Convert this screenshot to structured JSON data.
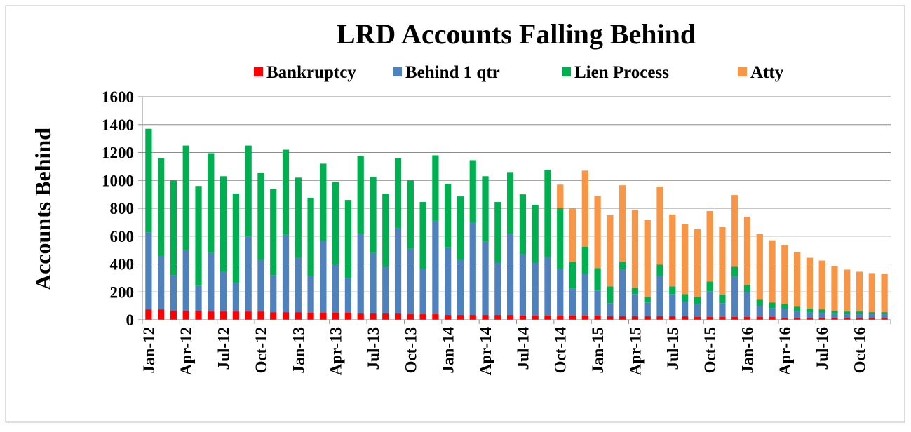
{
  "chart_data": {
    "type": "stacked_bar",
    "title": "LRD Accounts Falling Behind",
    "y_label": "Accounts Behind",
    "categories": [
      "Jan-12",
      null,
      null,
      "Apr-12",
      null,
      null,
      "Jul-12",
      null,
      null,
      "Oct-12",
      null,
      null,
      "Jan-13",
      null,
      null,
      "Apr-13",
      null,
      null,
      "Jul-13",
      null,
      null,
      "Oct-13",
      null,
      null,
      "Jan-14",
      null,
      null,
      "Apr-14",
      null,
      null,
      "Jul-14",
      null,
      null,
      "Oct-14",
      null,
      null,
      "Jan-15",
      null,
      null,
      "Apr-15",
      null,
      null,
      "Jul-15",
      null,
      null,
      "Oct-15",
      null,
      null,
      "Jan-16",
      null,
      null,
      "Apr-16",
      null,
      null,
      "Jul-16",
      null,
      null,
      "Oct-16",
      null,
      null
    ],
    "series": [
      {
        "name": "Bankruptcy",
        "color": "#ff0000",
        "values": [
          75,
          75,
          65,
          65,
          65,
          60,
          60,
          60,
          60,
          60,
          55,
          55,
          55,
          50,
          50,
          50,
          50,
          45,
          45,
          45,
          45,
          40,
          40,
          40,
          35,
          35,
          35,
          35,
          35,
          35,
          30,
          30,
          30,
          30,
          30,
          30,
          30,
          25,
          25,
          25,
          25,
          25,
          25,
          25,
          20,
          20,
          20,
          20,
          20,
          20,
          20,
          15,
          15,
          15,
          15,
          15,
          10,
          10,
          10,
          10
        ]
      },
      {
        "name": "Behind 1 qtr",
        "color": "#4f81bd",
        "values": [
          550,
          380,
          255,
          435,
          180,
          420,
          285,
          205,
          535,
          370,
          265,
          555,
          390,
          265,
          515,
          345,
          250,
          570,
          435,
          335,
          610,
          470,
          325,
          670,
          485,
          395,
          660,
          525,
          375,
          580,
          440,
          380,
          420,
          335,
          195,
          300,
          180,
          95,
          335,
          160,
          100,
          290,
          160,
          105,
          95,
          185,
          100,
          290,
          180,
          80,
          65,
          65,
          50,
          40,
          35,
          30,
          30,
          30,
          30,
          30
        ]
      },
      {
        "name": "Lien Process",
        "color": "#00b050",
        "values": [
          745,
          705,
          680,
          750,
          715,
          715,
          685,
          640,
          655,
          625,
          620,
          610,
          575,
          560,
          555,
          595,
          560,
          560,
          545,
          525,
          505,
          490,
          480,
          470,
          455,
          455,
          450,
          470,
          435,
          445,
          430,
          415,
          625,
          435,
          190,
          195,
          160,
          120,
          55,
          45,
          40,
          80,
          55,
          55,
          50,
          70,
          60,
          70,
          50,
          45,
          40,
          35,
          30,
          25,
          25,
          20,
          20,
          20,
          15,
          15
        ]
      },
      {
        "name": "Atty",
        "color": "#f79646",
        "values": [
          0,
          0,
          0,
          0,
          0,
          0,
          0,
          0,
          0,
          0,
          0,
          0,
          0,
          0,
          0,
          0,
          0,
          0,
          0,
          0,
          0,
          0,
          0,
          0,
          0,
          0,
          0,
          0,
          0,
          0,
          0,
          0,
          0,
          170,
          385,
          545,
          520,
          510,
          550,
          560,
          550,
          560,
          515,
          500,
          485,
          505,
          485,
          515,
          490,
          470,
          445,
          420,
          390,
          365,
          350,
          320,
          300,
          285,
          280,
          275
        ]
      }
    ],
    "ylim": [
      0,
      1600
    ],
    "yticks": [
      0,
      200,
      400,
      600,
      800,
      1000,
      1200,
      1400,
      1600
    ],
    "grid": true,
    "legend": "top"
  }
}
